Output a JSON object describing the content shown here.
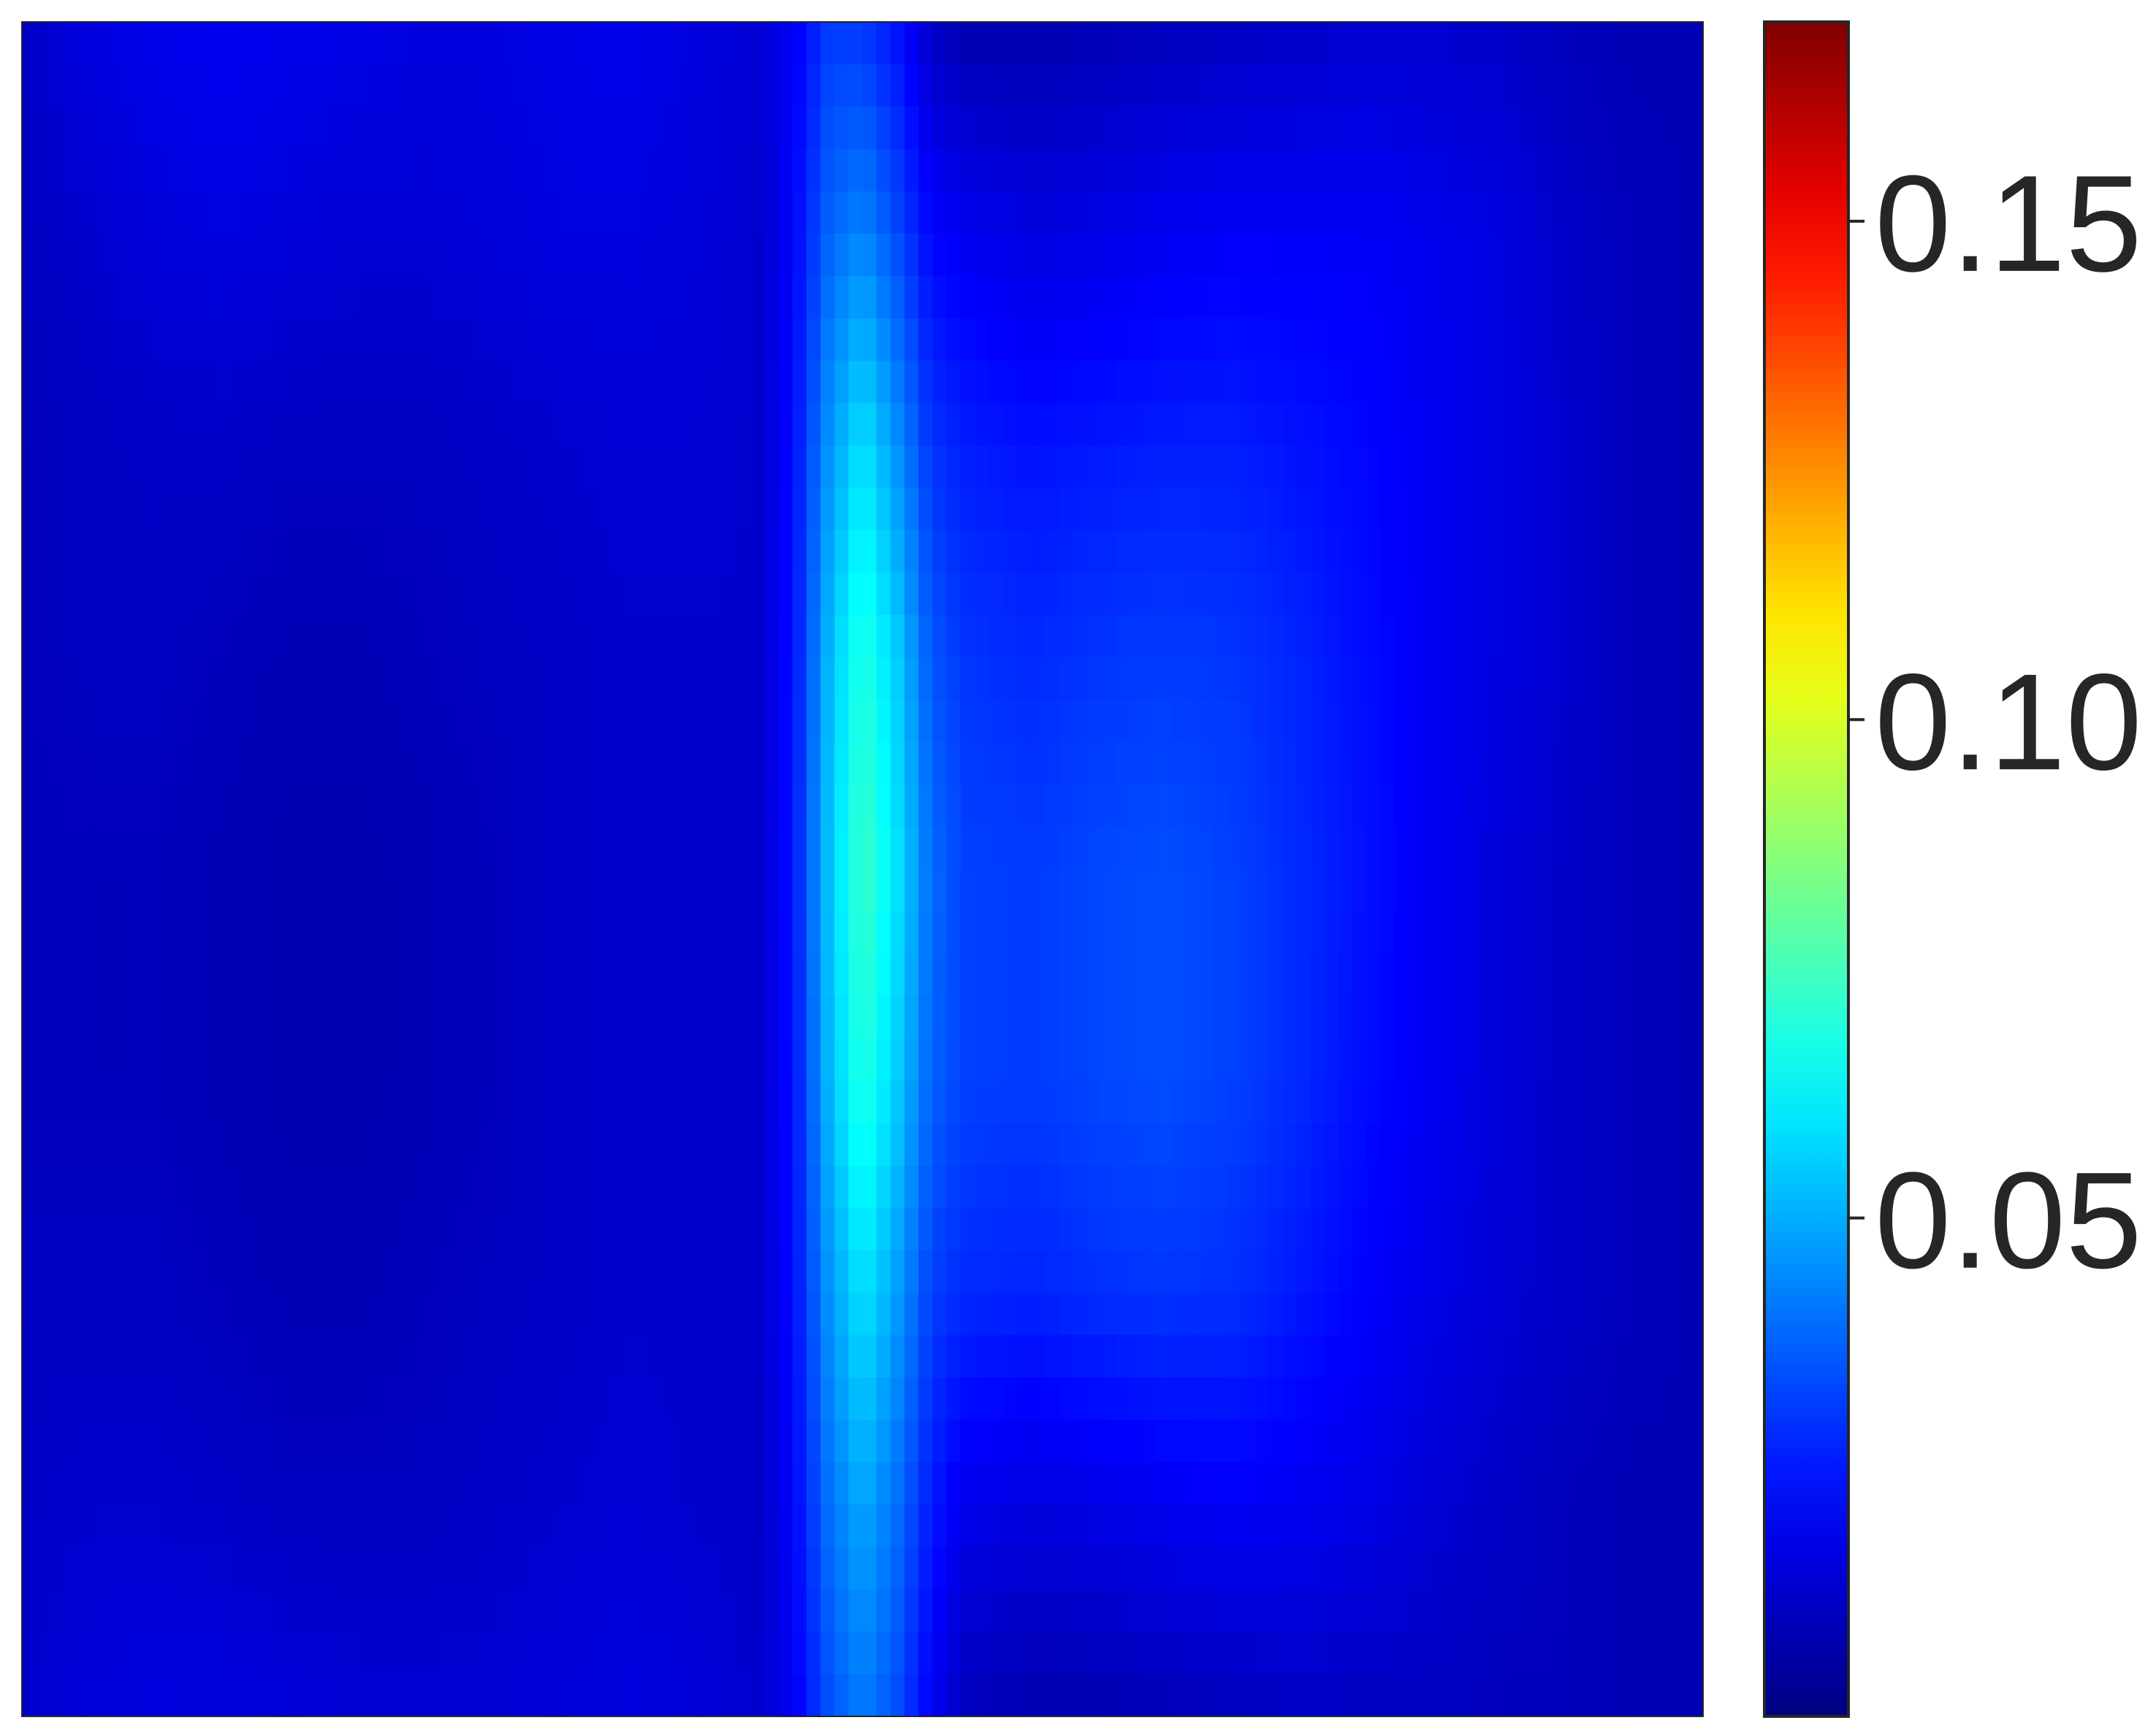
{
  "chart_data": {
    "type": "heatmap",
    "title": "",
    "xlabel": "",
    "ylabel": "",
    "colormap": "jet",
    "colors": {
      "background": "#ffffff",
      "axes_frame": "#262626",
      "tick_label": "#262626"
    },
    "colorbar": {
      "placement": "right",
      "range": [
        0.0,
        0.17
      ],
      "ticks": [
        0.05,
        0.1,
        0.15
      ],
      "tick_labels": [
        "0.05",
        "0.10",
        "0.15"
      ]
    },
    "x": [
      0.0,
      0.04,
      0.08,
      0.12,
      0.16,
      0.2,
      0.24,
      0.28,
      0.32,
      0.36,
      0.4,
      0.44,
      0.46,
      0.48,
      0.5,
      0.52,
      0.54,
      0.56,
      0.6,
      0.64,
      0.68,
      0.72,
      0.76,
      0.8,
      0.84,
      0.88,
      0.92,
      0.96,
      1.0
    ],
    "y": [
      0.0,
      0.125,
      0.25,
      0.375,
      0.5,
      0.625,
      0.75,
      0.875,
      1.0
    ],
    "z": [
      [
        0.012,
        0.016,
        0.018,
        0.019,
        0.018,
        0.017,
        0.016,
        0.016,
        0.017,
        0.018,
        0.016,
        0.014,
        0.02,
        0.031,
        0.03,
        0.024,
        0.012,
        0.008,
        0.008,
        0.009,
        0.01,
        0.011,
        0.012,
        0.013,
        0.013,
        0.012,
        0.01,
        0.009,
        0.009
      ],
      [
        0.011,
        0.013,
        0.015,
        0.016,
        0.015,
        0.014,
        0.014,
        0.015,
        0.016,
        0.016,
        0.015,
        0.013,
        0.022,
        0.038,
        0.044,
        0.034,
        0.022,
        0.019,
        0.016,
        0.017,
        0.019,
        0.02,
        0.02,
        0.02,
        0.018,
        0.016,
        0.012,
        0.01,
        0.009
      ],
      [
        0.01,
        0.011,
        0.012,
        0.012,
        0.011,
        0.011,
        0.011,
        0.012,
        0.013,
        0.014,
        0.014,
        0.013,
        0.024,
        0.046,
        0.06,
        0.046,
        0.03,
        0.026,
        0.024,
        0.025,
        0.026,
        0.026,
        0.024,
        0.022,
        0.019,
        0.016,
        0.013,
        0.01,
        0.009
      ],
      [
        0.01,
        0.011,
        0.011,
        0.01,
        0.009,
        0.009,
        0.01,
        0.011,
        0.012,
        0.013,
        0.013,
        0.013,
        0.025,
        0.052,
        0.07,
        0.056,
        0.036,
        0.03,
        0.028,
        0.03,
        0.031,
        0.03,
        0.027,
        0.023,
        0.019,
        0.016,
        0.013,
        0.01,
        0.009
      ],
      [
        0.01,
        0.01,
        0.01,
        0.009,
        0.008,
        0.008,
        0.009,
        0.01,
        0.012,
        0.013,
        0.013,
        0.013,
        0.026,
        0.054,
        0.074,
        0.06,
        0.04,
        0.032,
        0.031,
        0.033,
        0.034,
        0.032,
        0.028,
        0.024,
        0.019,
        0.015,
        0.012,
        0.01,
        0.009
      ],
      [
        0.01,
        0.01,
        0.01,
        0.009,
        0.008,
        0.008,
        0.009,
        0.01,
        0.012,
        0.013,
        0.013,
        0.013,
        0.025,
        0.052,
        0.07,
        0.056,
        0.038,
        0.032,
        0.031,
        0.033,
        0.034,
        0.032,
        0.028,
        0.023,
        0.019,
        0.015,
        0.012,
        0.01,
        0.009
      ],
      [
        0.011,
        0.011,
        0.011,
        0.01,
        0.009,
        0.009,
        0.01,
        0.011,
        0.012,
        0.013,
        0.013,
        0.013,
        0.024,
        0.046,
        0.06,
        0.048,
        0.032,
        0.028,
        0.027,
        0.029,
        0.03,
        0.029,
        0.025,
        0.021,
        0.017,
        0.014,
        0.012,
        0.01,
        0.009
      ],
      [
        0.012,
        0.013,
        0.013,
        0.012,
        0.011,
        0.011,
        0.011,
        0.012,
        0.013,
        0.014,
        0.013,
        0.012,
        0.022,
        0.04,
        0.05,
        0.04,
        0.026,
        0.018,
        0.016,
        0.017,
        0.019,
        0.02,
        0.019,
        0.017,
        0.014,
        0.012,
        0.01,
        0.009,
        0.009
      ],
      [
        0.013,
        0.015,
        0.016,
        0.016,
        0.015,
        0.014,
        0.014,
        0.014,
        0.015,
        0.016,
        0.015,
        0.013,
        0.02,
        0.034,
        0.042,
        0.034,
        0.02,
        0.01,
        0.008,
        0.008,
        0.009,
        0.01,
        0.011,
        0.011,
        0.011,
        0.01,
        0.01,
        0.009,
        0.009
      ]
    ]
  }
}
